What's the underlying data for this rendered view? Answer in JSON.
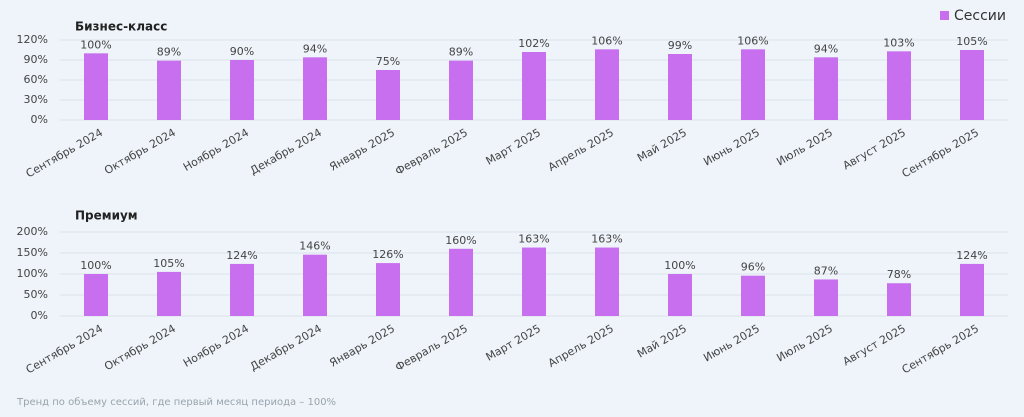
{
  "legend": "Сессии",
  "footnote": "Тренд по объему сессий, где первый месяц периода – 100%",
  "chart_data": [
    {
      "type": "bar",
      "title": "Бизнес-класс",
      "categories": [
        "Сентябрь 2024",
        "Октябрь 2024",
        "Ноябрь 2024",
        "Декабрь 2024",
        "Январь 2025",
        "Февраль 2025",
        "Март 2025",
        "Апрель 2025",
        "Май 2025",
        "Июнь 2025",
        "Июль 2025",
        "Август 2025",
        "Сентябрь 2025"
      ],
      "values": [
        100,
        89,
        90,
        94,
        75,
        89,
        102,
        106,
        99,
        106,
        94,
        103,
        105
      ],
      "value_labels": [
        "100%",
        "89%",
        "90%",
        "94%",
        "75%",
        "89%",
        "102%",
        "106%",
        "99%",
        "106%",
        "94%",
        "103%",
        "105%"
      ],
      "color": "#c86ff0",
      "ylim": [
        0,
        120
      ],
      "yticks": [
        {
          "value": 0,
          "label": "0%"
        },
        {
          "value": 30,
          "label": "30%"
        },
        {
          "value": 60,
          "label": "60%"
        },
        {
          "value": 90,
          "label": "90%"
        },
        {
          "value": 120,
          "label": "120%"
        }
      ],
      "grid": true
    },
    {
      "type": "bar",
      "title": "Премиум",
      "categories": [
        "Сентябрь 2024",
        "Октябрь 2024",
        "Ноябрь 2024",
        "Декабрь 2024",
        "Январь 2025",
        "Февраль 2025",
        "Март 2025",
        "Апрель 2025",
        "Май 2025",
        "Июнь 2025",
        "Июль 2025",
        "Август 2025",
        "Сентябрь 2025"
      ],
      "values": [
        100,
        105,
        124,
        146,
        126,
        160,
        163,
        163,
        100,
        96,
        87,
        78,
        124
      ],
      "value_labels": [
        "100%",
        "105%",
        "124%",
        "146%",
        "126%",
        "160%",
        "163%",
        "163%",
        "100%",
        "96%",
        "87%",
        "78%",
        "124%"
      ],
      "color": "#c86ff0",
      "ylim": [
        0,
        200
      ],
      "yticks": [
        {
          "value": 0,
          "label": "0%"
        },
        {
          "value": 50,
          "label": "50%"
        },
        {
          "value": 100,
          "label": "100%"
        },
        {
          "value": 150,
          "label": "150%"
        },
        {
          "value": 200,
          "label": "200%"
        }
      ],
      "grid": true
    }
  ]
}
